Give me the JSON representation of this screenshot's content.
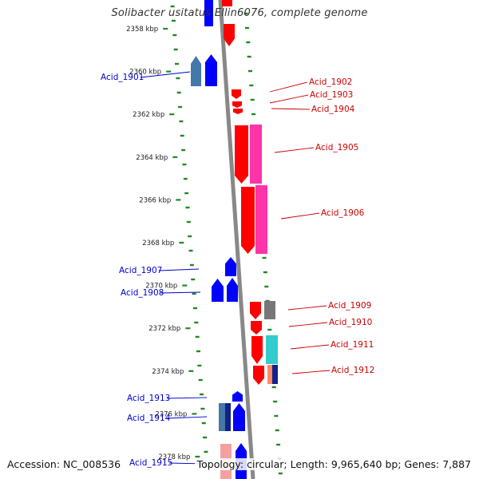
{
  "title": "Solibacter usitatus Ellin6076, complete genome",
  "accession": "Accession: NC_008536",
  "summary": "Topology: circular; Length: 9,965,640 bp; Genes: 7,887",
  "scale": {
    "unit": "kbp",
    "ticks": [
      {
        "label": "2358 kbp",
        "kbp": 2358
      },
      {
        "label": "2360 kbp",
        "kbp": 2360
      },
      {
        "label": "2362 kbp",
        "kbp": 2362
      },
      {
        "label": "2364 kbp",
        "kbp": 2364
      },
      {
        "label": "2366 kbp",
        "kbp": 2366
      },
      {
        "label": "2368 kbp",
        "kbp": 2368
      },
      {
        "label": "2370 kbp",
        "kbp": 2370
      },
      {
        "label": "2372 kbp",
        "kbp": 2372
      },
      {
        "label": "2374 kbp",
        "kbp": 2374
      },
      {
        "label": "2376 kbp",
        "kbp": 2376
      },
      {
        "label": "2378 kbp",
        "kbp": 2378
      }
    ]
  },
  "colors": {
    "forward_label": "#cc0000",
    "reverse_label": "#0000cc",
    "backbone": "#888888",
    "dots": "#228822",
    "cds_forward": "#ff0000",
    "cds_reverse": "#0000ff",
    "magenta": "#ff33aa",
    "cyan": "#33cccc",
    "gray": "#777777",
    "steel": "#4477aa",
    "navy": "#112288",
    "pink": "#f4a0a0",
    "salmon": "#ff8866"
  },
  "genes": [
    {
      "label": "Acid_1901",
      "strand": "reverse"
    },
    {
      "label": "Acid_1902",
      "strand": "forward"
    },
    {
      "label": "Acid_1903",
      "strand": "forward"
    },
    {
      "label": "Acid_1904",
      "strand": "forward"
    },
    {
      "label": "Acid_1905",
      "strand": "forward"
    },
    {
      "label": "Acid_1906",
      "strand": "forward"
    },
    {
      "label": "Acid_1907",
      "strand": "reverse"
    },
    {
      "label": "Acid_1908",
      "strand": "reverse"
    },
    {
      "label": "Acid_1909",
      "strand": "forward"
    },
    {
      "label": "Acid_1910",
      "strand": "forward"
    },
    {
      "label": "Acid_1911",
      "strand": "forward"
    },
    {
      "label": "Acid_1912",
      "strand": "forward"
    },
    {
      "label": "Acid_1913",
      "strand": "reverse"
    },
    {
      "label": "Acid_1914",
      "strand": "reverse"
    },
    {
      "label": "Acid_1915",
      "strand": "reverse"
    }
  ]
}
